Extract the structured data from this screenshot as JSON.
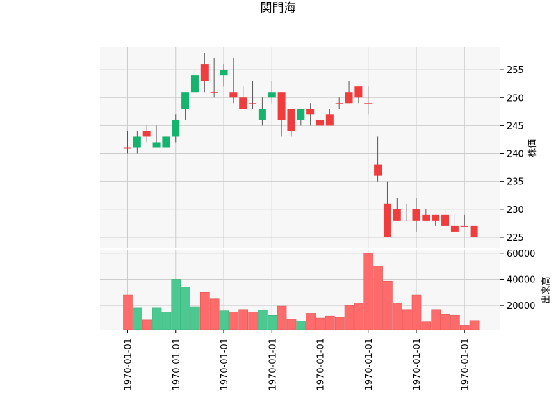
{
  "chart_data": {
    "type": "candlestick",
    "title": "関門海",
    "price_axis": {
      "ylabel": "株価",
      "ticks": [
        "225",
        "230",
        "235",
        "240",
        "245",
        "250",
        "255"
      ],
      "ylim": [
        223,
        259
      ]
    },
    "volume_axis": {
      "ylabel": "出来高",
      "ticks": [
        "20000",
        "40000",
        "60000"
      ],
      "ylim": [
        1500,
        62000
      ]
    },
    "x_tick_labels": [
      "1970-01-01",
      "1970-01-01",
      "1970-01-01",
      "1970-01-01",
      "1970-01-01",
      "1970-01-01",
      "1970-01-01",
      "1970-01-01"
    ],
    "x_tick_positions": [
      0,
      5,
      10,
      15,
      20,
      25,
      30,
      35
    ],
    "grid": true,
    "colors": {
      "up": "#f03c3c",
      "down": "#14b46e",
      "up_volume": "#ff6b6b",
      "down_volume": "#4cc990",
      "wick": "#555555",
      "plot_background": "#f7f7f7",
      "grid": "#cccccc"
    },
    "series": [
      {
        "open": 241,
        "high": 244,
        "low": 240,
        "close": 241,
        "volume": 28000
      },
      {
        "open": 243,
        "high": 244,
        "low": 240,
        "close": 241,
        "volume": 18000
      },
      {
        "open": 243,
        "high": 245,
        "low": 242,
        "close": 244,
        "volume": 9000
      },
      {
        "open": 242,
        "high": 245,
        "low": 241,
        "close": 241,
        "volume": 18000
      },
      {
        "open": 243,
        "high": 243,
        "low": 241,
        "close": 241,
        "volume": 15000
      },
      {
        "open": 246,
        "high": 247,
        "low": 242,
        "close": 243,
        "volume": 40000
      },
      {
        "open": 251,
        "high": 251,
        "low": 246,
        "close": 248,
        "volume": 34000
      },
      {
        "open": 254,
        "high": 255,
        "low": 251,
        "close": 251,
        "volume": 19000
      },
      {
        "open": 253,
        "high": 258,
        "low": 251,
        "close": 256,
        "volume": 30000
      },
      {
        "open": 251,
        "high": 257,
        "low": 250,
        "close": 251,
        "volume": 25000
      },
      {
        "open": 255,
        "high": 256,
        "low": 252,
        "close": 254,
        "volume": 16000
      },
      {
        "open": 250,
        "high": 257,
        "low": 249,
        "close": 251,
        "volume": 15000
      },
      {
        "open": 248,
        "high": 252,
        "low": 248,
        "close": 250,
        "volume": 17000
      },
      {
        "open": 249,
        "high": 253,
        "low": 248,
        "close": 249,
        "volume": 15000
      },
      {
        "open": 248,
        "high": 250,
        "low": 245,
        "close": 246,
        "volume": 16500
      },
      {
        "open": 251,
        "high": 253,
        "low": 249,
        "close": 250,
        "volume": 12500
      },
      {
        "open": 246,
        "high": 251,
        "low": 243,
        "close": 251,
        "volume": 19500
      },
      {
        "open": 244,
        "high": 248,
        "low": 243,
        "close": 248,
        "volume": 9500
      },
      {
        "open": 248,
        "high": 248,
        "low": 245,
        "close": 246,
        "volume": 8000
      },
      {
        "open": 247,
        "high": 249,
        "low": 245,
        "close": 248,
        "volume": 14000
      },
      {
        "open": 245,
        "high": 247,
        "low": 245,
        "close": 246,
        "volume": 10500
      },
      {
        "open": 245,
        "high": 248,
        "low": 245,
        "close": 247,
        "volume": 12000
      },
      {
        "open": 249,
        "high": 250,
        "low": 248,
        "close": 249,
        "volume": 11000
      },
      {
        "open": 249,
        "high": 253,
        "low": 249,
        "close": 251,
        "volume": 20000
      },
      {
        "open": 250,
        "high": 252,
        "low": 249,
        "close": 252,
        "volume": 22000
      },
      {
        "open": 249,
        "high": 252,
        "low": 247,
        "close": 249,
        "volume": 60000
      },
      {
        "open": 236,
        "high": 243,
        "low": 235,
        "close": 238,
        "volume": 50000
      },
      {
        "open": 225,
        "high": 235,
        "low": 225,
        "close": 231,
        "volume": 38500
      },
      {
        "open": 228,
        "high": 232,
        "low": 228,
        "close": 230,
        "volume": 22000
      },
      {
        "open": 228,
        "high": 231,
        "low": 228,
        "close": 228,
        "volume": 17000
      },
      {
        "open": 228,
        "high": 232,
        "low": 226,
        "close": 230,
        "volume": 28000
      },
      {
        "open": 228,
        "high": 230,
        "low": 228,
        "close": 229,
        "volume": 7500
      },
      {
        "open": 228,
        "high": 229,
        "low": 227,
        "close": 229,
        "volume": 17000
      },
      {
        "open": 227,
        "high": 230,
        "low": 227,
        "close": 229,
        "volume": 13000
      },
      {
        "open": 226,
        "high": 229,
        "low": 226,
        "close": 227,
        "volume": 12500
      },
      {
        "open": 227,
        "high": 229,
        "low": 227,
        "close": 227,
        "volume": 5000
      },
      {
        "open": 225,
        "high": 227,
        "low": 225,
        "close": 227,
        "volume": 8500
      }
    ]
  }
}
